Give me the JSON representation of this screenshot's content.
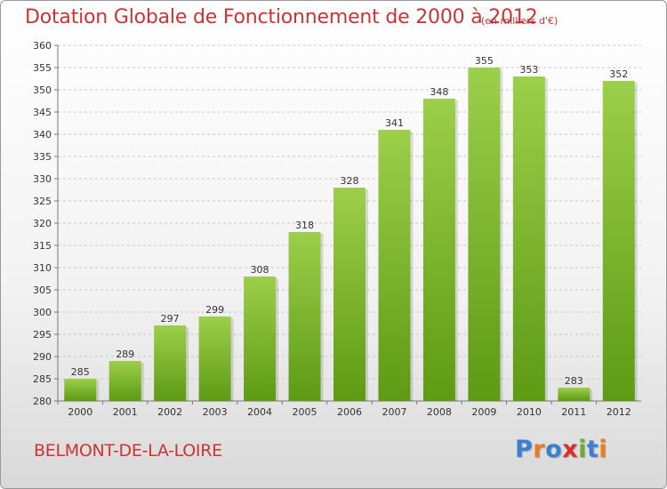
{
  "header": {
    "title": "Dotation Globale de Fonctionnement de 2000 à 2012",
    "unit": "(en milliers d'€)"
  },
  "footer": {
    "commune": "BELMONT-DE-LA-LOIRE",
    "logo": [
      "P",
      "r",
      "o",
      "x",
      "i",
      "t",
      "i"
    ]
  },
  "colors": {
    "title": "#cc3333",
    "bar_light": "#9ccf4a",
    "bar_dark": "#5e9a14",
    "logo": [
      "#3a7fd0",
      "#e87d1e",
      "#3a7fd0",
      "#d62f2f",
      "#6cae2e",
      "#3a7fd0",
      "#e87d1e"
    ]
  },
  "chart_data": {
    "type": "bar",
    "categories": [
      "2000",
      "2001",
      "2002",
      "2003",
      "2004",
      "2005",
      "2006",
      "2007",
      "2008",
      "2009",
      "2010",
      "2011",
      "2012"
    ],
    "values": [
      285,
      289,
      297,
      299,
      308,
      318,
      328,
      341,
      348,
      355,
      353,
      283,
      352
    ],
    "ylim": [
      280,
      360
    ],
    "yticks": [
      280,
      285,
      290,
      295,
      300,
      305,
      310,
      315,
      320,
      325,
      330,
      335,
      340,
      345,
      350,
      355,
      360
    ],
    "grid": "horizontal-dashed",
    "data_labels": true
  }
}
